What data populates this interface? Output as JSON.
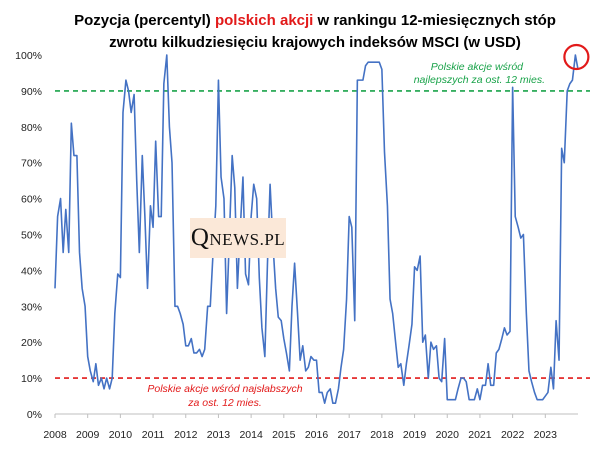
{
  "chart_data": {
    "type": "line",
    "title_parts": [
      "Pozycja (percentyl) ",
      "polskich akcji",
      " w rankingu 12-miesięcznych stóp"
    ],
    "title_line2": "zwrotu kilkudziesięciu krajowych indeksów MSCI (w USD)",
    "title_accent_color": "#e21a1a",
    "line_color": "#4472c4",
    "ylim": [
      0,
      100
    ],
    "y_ticks": [
      "0%",
      "10%",
      "20%",
      "30%",
      "40%",
      "50%",
      "60%",
      "70%",
      "80%",
      "90%",
      "100%"
    ],
    "xlim": [
      2008,
      2024
    ],
    "x_ticks": [
      "2008",
      "2009",
      "2010",
      "2011",
      "2012",
      "2013",
      "2014",
      "2015",
      "2016",
      "2017",
      "2018",
      "2019",
      "2020",
      "2021",
      "2022",
      "2023"
    ],
    "reference_lines": [
      {
        "value": 90,
        "color": "#1aa34a",
        "label_lines": [
          "Polskie akcje  wśród",
          "najlepszych za ost. 12 mies."
        ],
        "label_position": "top-right"
      },
      {
        "value": 10,
        "color": "#e21a1a",
        "label_lines": [
          "Polskie akcje  wśród najsłabszych",
          "za ost. 12 mies."
        ],
        "label_position": "bottom-left"
      }
    ],
    "highlight_last_point": {
      "color": "#e21a1a"
    },
    "series": [
      {
        "name": "Pozycja polskich akcji",
        "points": [
          [
            2008.0,
            35
          ],
          [
            2008.08,
            55
          ],
          [
            2008.17,
            60
          ],
          [
            2008.25,
            45
          ],
          [
            2008.33,
            57
          ],
          [
            2008.42,
            45
          ],
          [
            2008.5,
            81
          ],
          [
            2008.58,
            72
          ],
          [
            2008.67,
            72
          ],
          [
            2008.75,
            45
          ],
          [
            2008.83,
            35
          ],
          [
            2008.92,
            30
          ],
          [
            2009.0,
            16
          ],
          [
            2009.08,
            12
          ],
          [
            2009.17,
            9
          ],
          [
            2009.25,
            14
          ],
          [
            2009.33,
            8
          ],
          [
            2009.42,
            10
          ],
          [
            2009.5,
            7
          ],
          [
            2009.58,
            10
          ],
          [
            2009.67,
            7
          ],
          [
            2009.75,
            10
          ],
          [
            2009.83,
            28
          ],
          [
            2009.92,
            39
          ],
          [
            2010.0,
            38
          ],
          [
            2010.08,
            84
          ],
          [
            2010.17,
            93
          ],
          [
            2010.25,
            90
          ],
          [
            2010.33,
            84
          ],
          [
            2010.42,
            89
          ],
          [
            2010.5,
            65
          ],
          [
            2010.58,
            45
          ],
          [
            2010.67,
            72
          ],
          [
            2010.75,
            55
          ],
          [
            2010.83,
            35
          ],
          [
            2010.92,
            58
          ],
          [
            2011.0,
            52
          ],
          [
            2011.08,
            76
          ],
          [
            2011.17,
            55
          ],
          [
            2011.25,
            55
          ],
          [
            2011.33,
            92
          ],
          [
            2011.42,
            100
          ],
          [
            2011.5,
            80
          ],
          [
            2011.58,
            70
          ],
          [
            2011.67,
            30
          ],
          [
            2011.75,
            30
          ],
          [
            2011.83,
            28
          ],
          [
            2011.92,
            25
          ],
          [
            2012.0,
            19
          ],
          [
            2012.08,
            19
          ],
          [
            2012.17,
            21
          ],
          [
            2012.25,
            17
          ],
          [
            2012.33,
            17
          ],
          [
            2012.42,
            18
          ],
          [
            2012.5,
            16
          ],
          [
            2012.58,
            18
          ],
          [
            2012.67,
            30
          ],
          [
            2012.75,
            30
          ],
          [
            2012.83,
            44
          ],
          [
            2012.92,
            58
          ],
          [
            2013.0,
            93
          ],
          [
            2013.08,
            66
          ],
          [
            2013.17,
            60
          ],
          [
            2013.25,
            28
          ],
          [
            2013.33,
            48
          ],
          [
            2013.42,
            72
          ],
          [
            2013.5,
            63
          ],
          [
            2013.58,
            35
          ],
          [
            2013.67,
            52
          ],
          [
            2013.75,
            66
          ],
          [
            2013.83,
            39
          ],
          [
            2013.92,
            36
          ],
          [
            2014.0,
            55
          ],
          [
            2014.08,
            64
          ],
          [
            2014.17,
            60
          ],
          [
            2014.25,
            38
          ],
          [
            2014.33,
            24
          ],
          [
            2014.42,
            16
          ],
          [
            2014.5,
            42
          ],
          [
            2014.58,
            64
          ],
          [
            2014.67,
            47
          ],
          [
            2014.75,
            35
          ],
          [
            2014.83,
            27
          ],
          [
            2014.92,
            26
          ],
          [
            2015.0,
            21
          ],
          [
            2015.08,
            17
          ],
          [
            2015.17,
            12
          ],
          [
            2015.25,
            30
          ],
          [
            2015.33,
            42
          ],
          [
            2015.42,
            28
          ],
          [
            2015.5,
            15
          ],
          [
            2015.58,
            19
          ],
          [
            2015.67,
            12
          ],
          [
            2015.75,
            13
          ],
          [
            2015.83,
            16
          ],
          [
            2015.92,
            15
          ],
          [
            2016.0,
            15
          ],
          [
            2016.08,
            6
          ],
          [
            2016.17,
            6
          ],
          [
            2016.25,
            3
          ],
          [
            2016.33,
            6
          ],
          [
            2016.42,
            7
          ],
          [
            2016.5,
            3
          ],
          [
            2016.58,
            3
          ],
          [
            2016.67,
            7
          ],
          [
            2016.75,
            13
          ],
          [
            2016.83,
            18
          ],
          [
            2016.92,
            32
          ],
          [
            2017.0,
            55
          ],
          [
            2017.08,
            52
          ],
          [
            2017.17,
            26
          ],
          [
            2017.25,
            93
          ],
          [
            2017.33,
            93
          ],
          [
            2017.42,
            93
          ],
          [
            2017.5,
            97
          ],
          [
            2017.58,
            98
          ],
          [
            2017.67,
            98
          ],
          [
            2017.75,
            98
          ],
          [
            2017.83,
            98
          ],
          [
            2017.92,
            98
          ],
          [
            2018.0,
            96
          ],
          [
            2018.08,
            73
          ],
          [
            2018.17,
            58
          ],
          [
            2018.25,
            32
          ],
          [
            2018.33,
            28
          ],
          [
            2018.42,
            20
          ],
          [
            2018.5,
            13
          ],
          [
            2018.58,
            14
          ],
          [
            2018.67,
            8
          ],
          [
            2018.75,
            14
          ],
          [
            2018.83,
            19
          ],
          [
            2018.92,
            25
          ],
          [
            2019.0,
            41
          ],
          [
            2019.08,
            40
          ],
          [
            2019.17,
            44
          ],
          [
            2019.25,
            20
          ],
          [
            2019.33,
            22
          ],
          [
            2019.42,
            10
          ],
          [
            2019.5,
            20
          ],
          [
            2019.58,
            18
          ],
          [
            2019.67,
            19
          ],
          [
            2019.75,
            10
          ],
          [
            2019.83,
            9
          ],
          [
            2019.92,
            21
          ],
          [
            2020.0,
            4
          ],
          [
            2020.08,
            4
          ],
          [
            2020.17,
            4
          ],
          [
            2020.25,
            4
          ],
          [
            2020.33,
            7
          ],
          [
            2020.42,
            10
          ],
          [
            2020.5,
            10
          ],
          [
            2020.58,
            9
          ],
          [
            2020.67,
            4
          ],
          [
            2020.75,
            4
          ],
          [
            2020.83,
            4
          ],
          [
            2020.92,
            7
          ],
          [
            2021.0,
            4
          ],
          [
            2021.08,
            8
          ],
          [
            2021.17,
            8
          ],
          [
            2021.25,
            14
          ],
          [
            2021.33,
            8
          ],
          [
            2021.42,
            8
          ],
          [
            2021.5,
            17
          ],
          [
            2021.58,
            18
          ],
          [
            2021.67,
            21
          ],
          [
            2021.75,
            24
          ],
          [
            2021.83,
            22
          ],
          [
            2021.92,
            23
          ],
          [
            2022.0,
            91
          ],
          [
            2022.08,
            55
          ],
          [
            2022.17,
            52
          ],
          [
            2022.25,
            49
          ],
          [
            2022.33,
            50
          ],
          [
            2022.42,
            28
          ],
          [
            2022.5,
            12
          ],
          [
            2022.58,
            9
          ],
          [
            2022.67,
            6
          ],
          [
            2022.75,
            4
          ],
          [
            2022.83,
            4
          ],
          [
            2022.92,
            4
          ],
          [
            2023.0,
            5
          ],
          [
            2023.08,
            6
          ],
          [
            2023.17,
            13
          ],
          [
            2023.25,
            7
          ],
          [
            2023.33,
            26
          ],
          [
            2023.42,
            15
          ],
          [
            2023.5,
            74
          ],
          [
            2023.58,
            70
          ],
          [
            2023.67,
            90
          ],
          [
            2023.75,
            92
          ],
          [
            2023.83,
            93
          ],
          [
            2023.92,
            100
          ],
          [
            2024.0,
            96
          ]
        ]
      }
    ]
  },
  "logo": {
    "big_letter": "Q",
    "rest": "NEWS.PL"
  }
}
